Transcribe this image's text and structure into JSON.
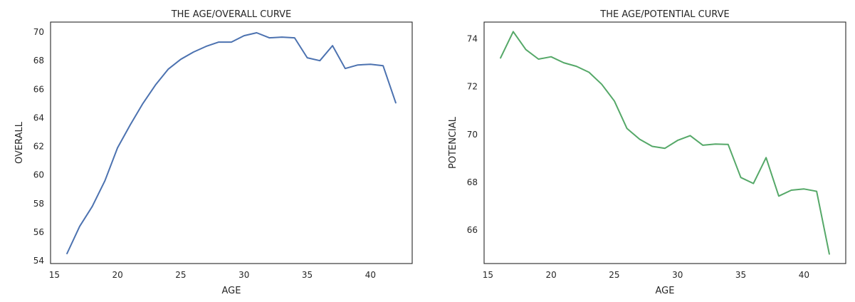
{
  "chart_data": [
    {
      "type": "line",
      "title": "THE AGE/OVERALL CURVE",
      "xlabel": "AGE",
      "ylabel": "OVERALL",
      "xlim": [
        14.7,
        43.3
      ],
      "ylim": [
        53.8,
        70.7
      ],
      "xticks": [
        15,
        20,
        25,
        30,
        35,
        40
      ],
      "yticks": [
        54,
        56,
        58,
        60,
        62,
        64,
        66,
        68,
        70
      ],
      "grid": false,
      "color": "#4c72b0",
      "series": [
        {
          "x": [
            16,
            17,
            18,
            19,
            20,
            21,
            22,
            23,
            24,
            25,
            26,
            27,
            28,
            29,
            30,
            31,
            32,
            33,
            34,
            35,
            36,
            37,
            38,
            39,
            40,
            41,
            42
          ],
          "values": [
            54.5,
            56.4,
            57.8,
            59.6,
            61.9,
            63.5,
            65.0,
            66.3,
            67.4,
            68.1,
            68.6,
            69.0,
            69.3,
            69.3,
            69.75,
            69.95,
            69.6,
            69.65,
            69.6,
            68.2,
            68.0,
            69.05,
            67.45,
            67.7,
            67.75,
            67.65,
            65.05
          ]
        }
      ]
    },
    {
      "type": "line",
      "title": "THE AGE/POTENTIAL CURVE",
      "xlabel": "AGE",
      "ylabel": "POTENCIAL",
      "xlim": [
        14.7,
        43.3
      ],
      "ylim": [
        64.6,
        74.7
      ],
      "xticks": [
        15,
        20,
        25,
        30,
        35,
        40
      ],
      "yticks": [
        66,
        68,
        70,
        72,
        74
      ],
      "grid": false,
      "color": "#55a868",
      "series": [
        {
          "x": [
            16,
            17,
            18,
            19,
            20,
            21,
            22,
            23,
            24,
            25,
            26,
            27,
            28,
            29,
            30,
            31,
            32,
            33,
            34,
            35,
            36,
            37,
            38,
            39,
            40,
            41,
            42
          ],
          "values": [
            73.2,
            74.3,
            73.55,
            73.15,
            73.25,
            73.0,
            72.85,
            72.6,
            72.1,
            71.4,
            70.25,
            69.8,
            69.5,
            69.42,
            69.75,
            69.95,
            69.55,
            69.6,
            69.58,
            68.2,
            67.95,
            69.03,
            67.42,
            67.67,
            67.72,
            67.62,
            65.0
          ]
        }
      ]
    }
  ]
}
